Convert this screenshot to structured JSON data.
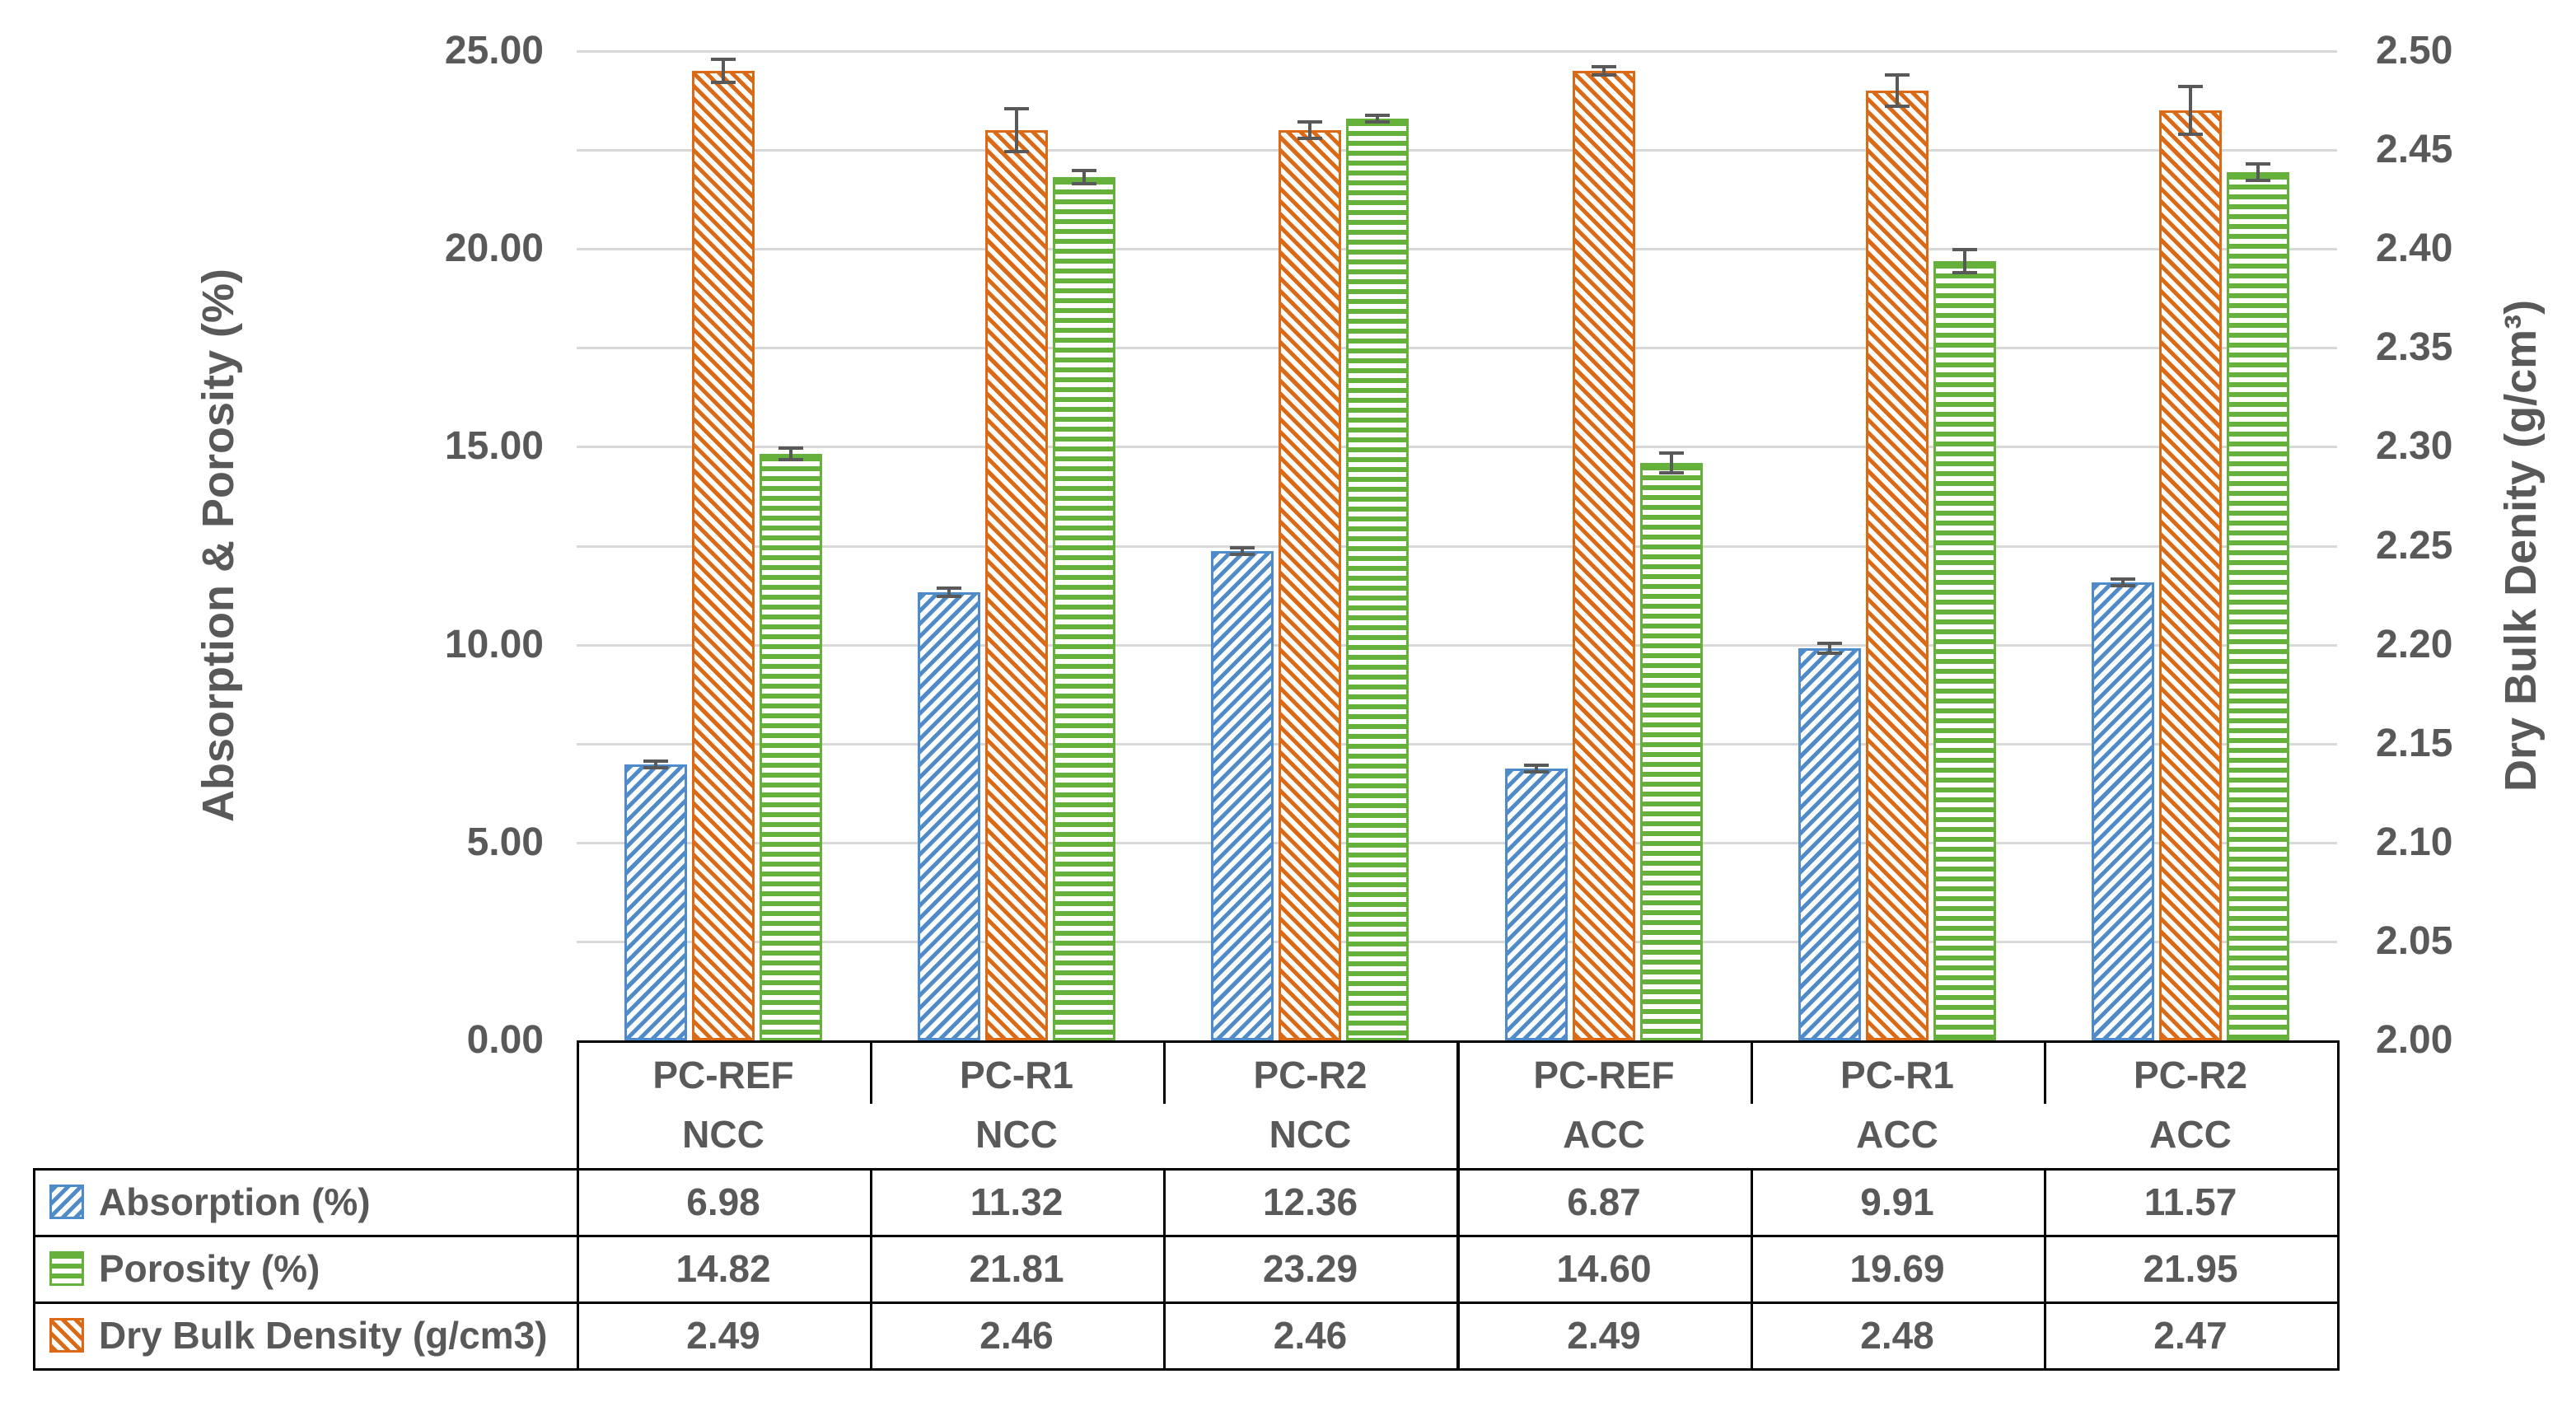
{
  "chart_data": {
    "type": "bar",
    "title": "",
    "left_axis": {
      "label": "Absorption & Porosity (%)",
      "min": 0,
      "max": 25,
      "tick_step": 5,
      "ticks": [
        "0.00",
        "5.00",
        "10.00",
        "15.00",
        "20.00",
        "25.00"
      ]
    },
    "right_axis": {
      "label": "Dry Bulk Denity (g/cm³)",
      "min": 2.0,
      "max": 2.5,
      "tick_step": 0.05,
      "ticks": [
        "2.00",
        "2.05",
        "2.10",
        "2.15",
        "2.20",
        "2.25",
        "2.30",
        "2.35",
        "2.40",
        "2.45",
        "2.50"
      ]
    },
    "categories": [
      {
        "name": "PC-REF",
        "group": "NCC"
      },
      {
        "name": "PC-R1",
        "group": "NCC"
      },
      {
        "name": "PC-R2",
        "group": "NCC"
      },
      {
        "name": "PC-REF",
        "group": "ACC"
      },
      {
        "name": "PC-R1",
        "group": "ACC"
      },
      {
        "name": "PC-R2",
        "group": "ACC"
      }
    ],
    "series": [
      {
        "name": "Absorption (%)",
        "key": "absorption",
        "axis": "left",
        "color": "#4E8BC8",
        "pattern": "diagonal-up",
        "values": [
          6.98,
          11.32,
          12.36,
          6.87,
          9.91,
          11.57
        ],
        "errors": [
          0.08,
          0.1,
          0.08,
          0.06,
          0.12,
          0.08
        ]
      },
      {
        "name": "Porosity (%)",
        "key": "porosity",
        "axis": "left",
        "color": "#66B03C",
        "pattern": "horizontal",
        "values": [
          14.82,
          21.81,
          23.29,
          14.6,
          19.69,
          21.95
        ],
        "errors": [
          0.15,
          0.17,
          0.08,
          0.25,
          0.3,
          0.2
        ]
      },
      {
        "name": "Dry Bulk Density (g/cm3)",
        "key": "dry-bulk-density",
        "axis": "right",
        "color": "#DB6A16",
        "pattern": "diagonal-down",
        "values": [
          2.49,
          2.46,
          2.46,
          2.49,
          2.48,
          2.47
        ],
        "errors": [
          0.006,
          0.011,
          0.004,
          0.002,
          0.008,
          0.012
        ]
      }
    ],
    "plot_order": [
      0,
      2,
      1
    ],
    "gridlines": {
      "step_left": 2.5,
      "color": "#D8D8D8"
    },
    "error_bar_color": "#595959",
    "legend_position": "table-left-column",
    "value_format_decimals": 2
  }
}
